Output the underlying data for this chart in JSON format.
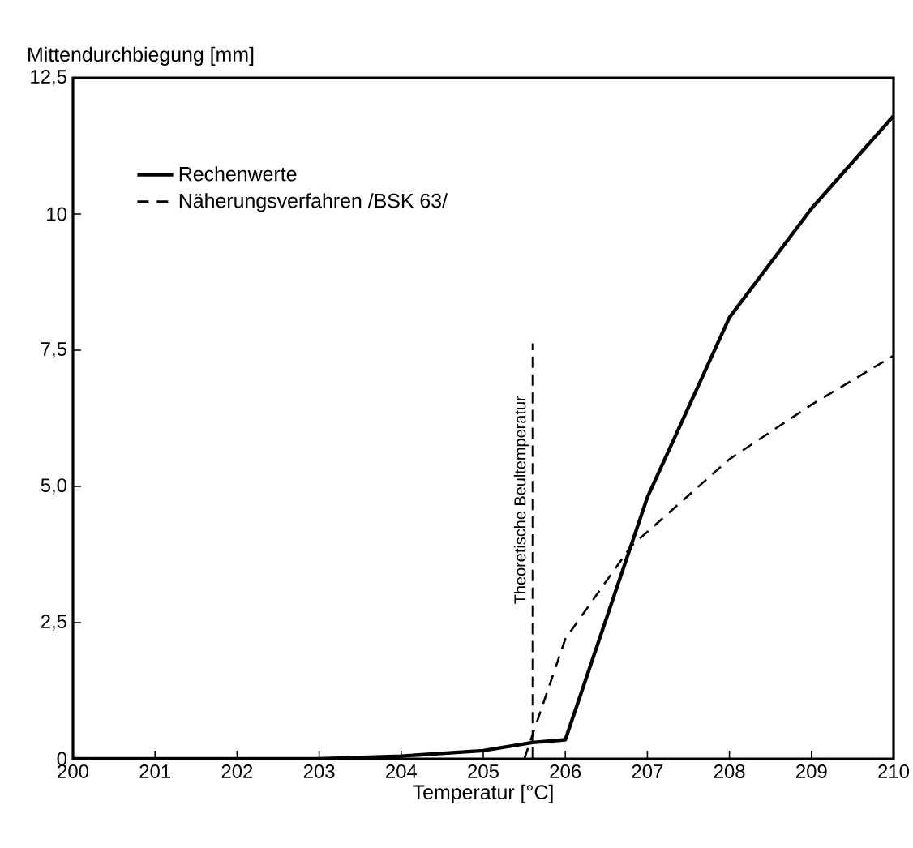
{
  "chart_data": {
    "type": "line",
    "xlabel": "Temperatur [°C]",
    "ylabel": "Mittendurchbiegung [mm]",
    "xlim": [
      200,
      210
    ],
    "ylim": [
      0,
      12.5
    ],
    "xticks": [
      200,
      201,
      202,
      203,
      204,
      205,
      206,
      207,
      208,
      209,
      210
    ],
    "yticks": [
      0,
      {
        "value": 2.5,
        "label": "2,5"
      },
      {
        "value": 5.0,
        "label": "5,0"
      },
      {
        "value": 7.5,
        "label": "7,5"
      },
      10,
      {
        "value": 12.5,
        "label": "12,5"
      }
    ],
    "grid": false,
    "legend": "top left",
    "marker": "none",
    "series": [
      {
        "name": "Rechenwerte",
        "color": "#000000",
        "line_style": "solid",
        "x": [
          200,
          203,
          204,
          205,
          205.6,
          206,
          207,
          208,
          209,
          210
        ],
        "values": [
          0,
          0,
          0.05,
          0.15,
          0.3,
          0.35,
          4.8,
          8.1,
          10.1,
          11.8
        ]
      },
      {
        "name": "Näherungsverfahren /BSK 63/",
        "color": "#000000",
        "line_style": "dashed",
        "x": [
          205.5,
          206,
          206.8,
          208,
          209,
          210
        ],
        "values": [
          0,
          2.2,
          3.9,
          5.5,
          6.5,
          7.4
        ]
      }
    ],
    "ref_lines": [
      {
        "axis": "x",
        "value": 205.6,
        "label": "Theoretische Beultemperatur",
        "line_style": "dashed",
        "color": "#000000"
      }
    ]
  }
}
